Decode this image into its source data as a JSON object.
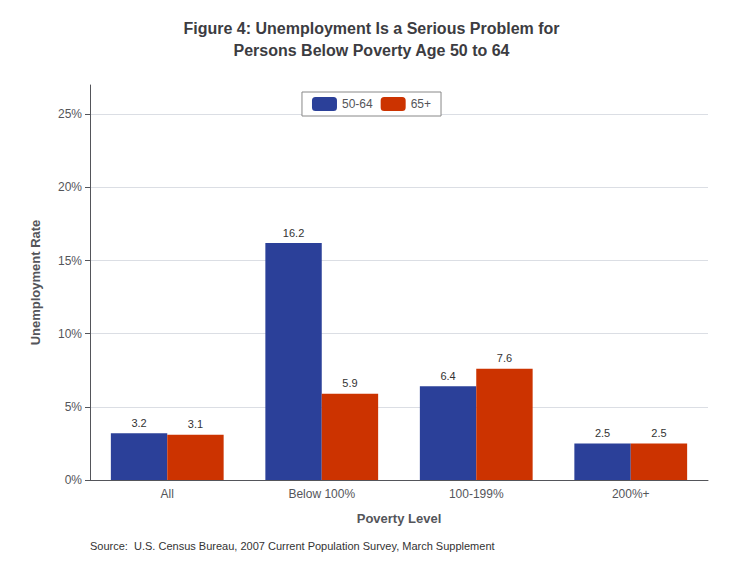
{
  "chart_data": {
    "type": "bar",
    "title": "Figure 4: Unemployment Is a Serious Problem for\nPersons Below Poverty Age 50 to 64",
    "categories": [
      "All",
      "Below 100%",
      "100-199%",
      "200%+"
    ],
    "series": [
      {
        "name": "50-64",
        "color": "#2B4099",
        "values": [
          3.2,
          16.2,
          6.4,
          2.5
        ]
      },
      {
        "name": "65+",
        "color": "#CC3300",
        "values": [
          3.1,
          5.9,
          7.6,
          2.5
        ]
      }
    ],
    "xlabel": "Poverty Level",
    "ylabel": "Unemployment Rate",
    "ylim": [
      0,
      27
    ],
    "yticks": [
      {
        "value": 0,
        "label": "0%"
      },
      {
        "value": 5,
        "label": "5%"
      },
      {
        "value": 10,
        "label": "10%"
      },
      {
        "value": 15,
        "label": "15%"
      },
      {
        "value": 20,
        "label": "20%"
      },
      {
        "value": 25,
        "label": "25%"
      }
    ],
    "grid": true,
    "legend": "upper center",
    "data_labels": true,
    "source": "Source:  U.S. Census Bureau, 2007 Current Population Survey, March Supplement"
  }
}
